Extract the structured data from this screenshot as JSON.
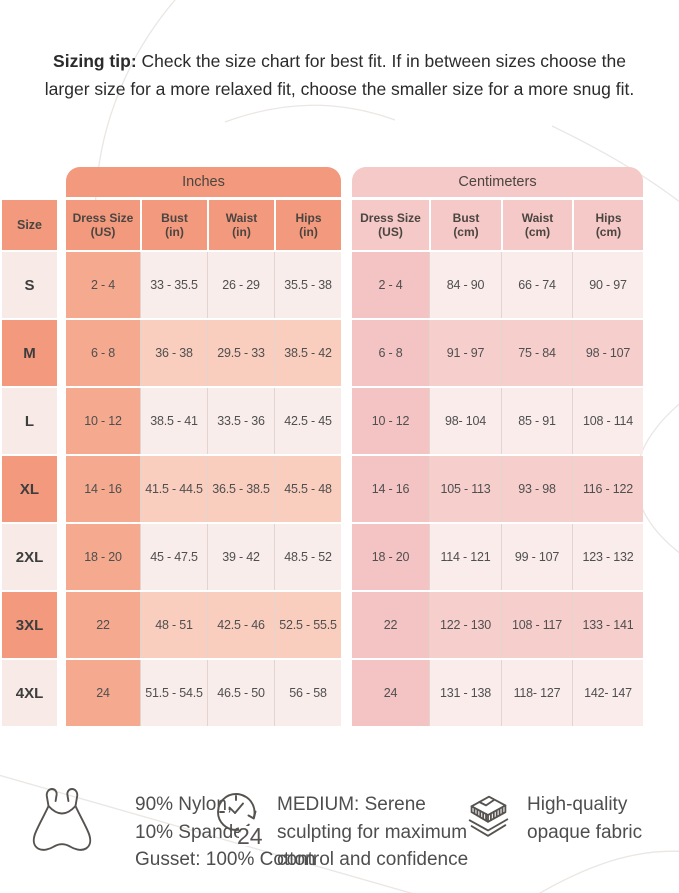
{
  "sizing_tip": {
    "label": "Sizing tip:",
    "line1": " Check the size chart for best fit. If in between sizes choose the",
    "line2": "larger size for a more relaxed fit, choose the smaller size for a more snug fit."
  },
  "size_column": {
    "header": "Size"
  },
  "chart_data": [
    {
      "type": "table",
      "title": "Inches",
      "row_header": "Size",
      "row_labels": [
        "S",
        "M",
        "L",
        "XL",
        "2XL",
        "3XL",
        "4XL"
      ],
      "columns": [
        "Dress Size (US)",
        "Bust (in)",
        "Waist (in)",
        "Hips (in)"
      ],
      "rows": [
        [
          "2 - 4",
          "33 - 35.5",
          "26 - 29",
          "35.5 - 38"
        ],
        [
          "6 - 8",
          "36 - 38",
          "29.5 - 33",
          "38.5 - 42"
        ],
        [
          "10 - 12",
          "38.5 - 41",
          "33.5 - 36",
          "42.5 - 45"
        ],
        [
          "14 - 16",
          "41.5 - 44.5",
          "36.5 - 38.5",
          "45.5 - 48"
        ],
        [
          "18 - 20",
          "45 - 47.5",
          "39 - 42",
          "48.5 - 52"
        ],
        [
          "22",
          "48 - 51",
          "42.5 - 46",
          "52.5 - 55.5"
        ],
        [
          "24",
          "51.5 - 54.5",
          "46.5 - 50",
          "56 - 58"
        ]
      ]
    },
    {
      "type": "table",
      "title": "Centimeters",
      "row_header": "Size",
      "row_labels": [
        "S",
        "M",
        "L",
        "XL",
        "2XL",
        "3XL",
        "4XL"
      ],
      "columns": [
        "Dress Size (US)",
        "Bust (cm)",
        "Waist (cm)",
        "Hips (cm)"
      ],
      "rows": [
        [
          "2 - 4",
          "84 - 90",
          "66 - 74",
          "90 - 97"
        ],
        [
          "6 - 8",
          "91 - 97",
          "75 - 84",
          "98 - 107"
        ],
        [
          "10 - 12",
          "98- 104",
          "85 - 91",
          "108 - 114"
        ],
        [
          "14 - 16",
          "105 - 113",
          "93 - 98",
          "116 - 122"
        ],
        [
          "18 - 20",
          "114 - 121",
          "99 - 107",
          "123 - 132"
        ],
        [
          "22",
          "122 - 130",
          "108 - 117",
          "133 - 141"
        ],
        [
          "24",
          "131 - 138",
          "118- 127",
          "142- 147"
        ]
      ]
    }
  ],
  "footer": {
    "items": [
      {
        "icon": "swimsuit-icon",
        "lines": [
          "90% Nylon,",
          "10% Spandex",
          "Gusset: 100% Cotton"
        ]
      },
      {
        "icon": "clock-24-icon",
        "icon_label": "24",
        "lines": [
          "MEDIUM: Serene",
          "sculpting for maximum",
          "control and confidence"
        ]
      },
      {
        "icon": "fabric-layers-icon",
        "lines": [
          "High-quality",
          "opaque fabric"
        ]
      }
    ]
  },
  "colors": {
    "salmon_dark": "#F2997E",
    "salmon_mid": "#F5A98E",
    "salmon_soft": "#F9CEBE",
    "cream": "#F8EDEA",
    "size_light": "#F7EAE7",
    "pink_dark": "#F5C9C8",
    "pink_mid": "#F3C4C3",
    "pink_soft": "#F6CFCD",
    "pink_cream": "#F9ECEB",
    "grid_line": "#E3D4D0",
    "decor": "#EAE6E3",
    "icon": "#56524F"
  }
}
